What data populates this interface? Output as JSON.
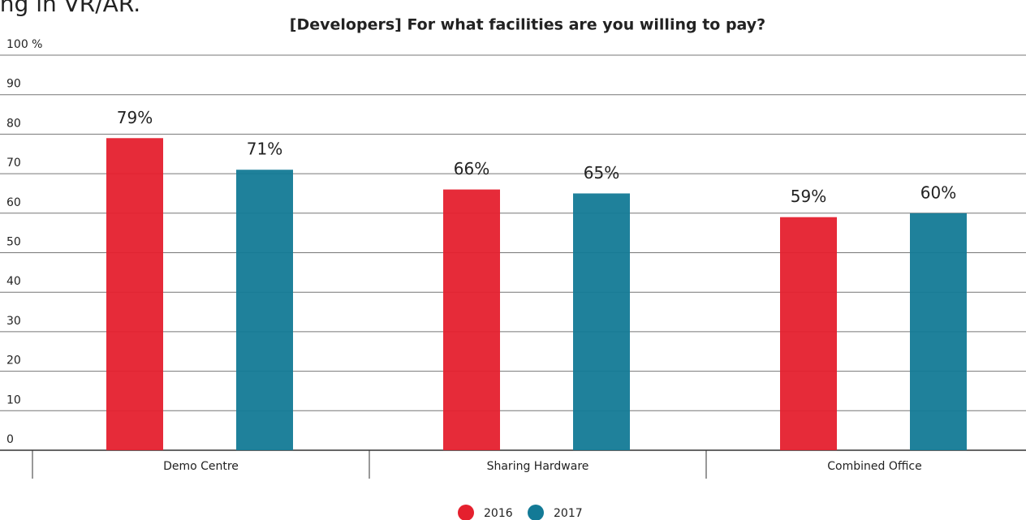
{
  "caption": "ing in VR/AR.",
  "chart_data": {
    "type": "bar",
    "title": "[Developers] For what facilities are you willing to pay?",
    "categories": [
      "Demo Centre",
      "Sharing Hardware",
      "Combined Office"
    ],
    "series": [
      {
        "name": "2016",
        "color": "#e5202e",
        "values": [
          79,
          66,
          59
        ],
        "value_labels": [
          "79%",
          "66%",
          "59%"
        ]
      },
      {
        "name": "2017",
        "color": "#137a96",
        "values": [
          71,
          65,
          60
        ],
        "value_labels": [
          "71%",
          "65%",
          "60%"
        ]
      }
    ],
    "ylim": [
      0,
      100
    ],
    "yticks": [
      0,
      10,
      20,
      30,
      40,
      50,
      60,
      70,
      80,
      90,
      {
        "value": 100,
        "label": "100 %"
      }
    ],
    "grid": true
  }
}
